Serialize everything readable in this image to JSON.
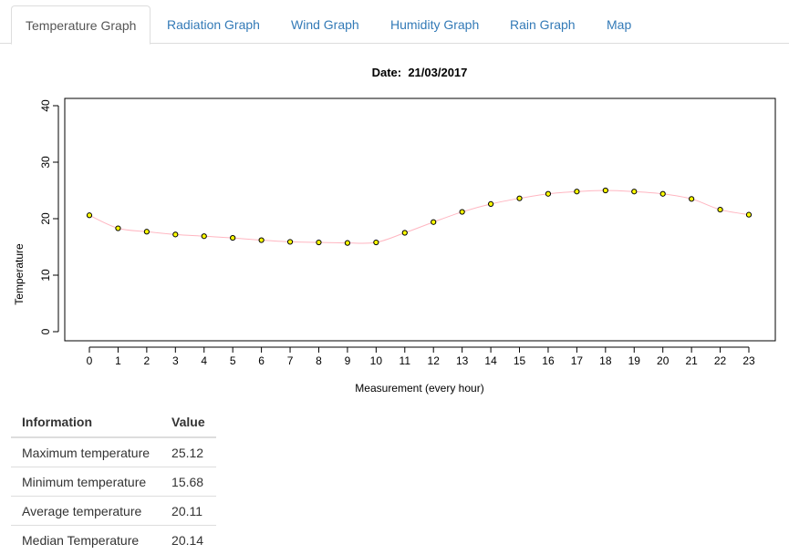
{
  "tabs": [
    {
      "label": "Temperature Graph",
      "active": true
    },
    {
      "label": "Radiation Graph",
      "active": false
    },
    {
      "label": "Wind Graph",
      "active": false
    },
    {
      "label": "Humidity Graph",
      "active": false
    },
    {
      "label": "Rain Graph",
      "active": false
    },
    {
      "label": "Map",
      "active": false
    }
  ],
  "chart_data": {
    "type": "line",
    "title": "Date:  21/03/2017",
    "xlabel": "Measurement (every hour)",
    "ylabel": "Temperature",
    "x": [
      0,
      1,
      2,
      3,
      4,
      5,
      6,
      7,
      8,
      9,
      10,
      11,
      12,
      13,
      14,
      15,
      16,
      17,
      18,
      19,
      20,
      21,
      22,
      23
    ],
    "series": [
      {
        "values": [
          20.6,
          18.3,
          17.7,
          17.2,
          16.9,
          16.6,
          16.2,
          15.9,
          15.8,
          15.7,
          15.8,
          17.5,
          19.4,
          21.2,
          22.6,
          23.6,
          24.4,
          24.8,
          25.0,
          24.8,
          24.4,
          23.5,
          21.6,
          20.7
        ],
        "line_color": "#ffb6c1",
        "marker_fill": "#ffff00",
        "marker_edge": "#000000"
      }
    ],
    "xlim": [
      0,
      23
    ],
    "ylim": [
      0,
      40
    ],
    "yticks": [
      0,
      10,
      20,
      30,
      40
    ],
    "grid": false
  },
  "info_table": {
    "headers": [
      "Information",
      "Value"
    ],
    "rows": [
      [
        "Maximum temperature",
        "25.12"
      ],
      [
        "Minimum temperature",
        "15.68"
      ],
      [
        "Average temperature",
        "20.11"
      ],
      [
        "Median Temperature",
        "20.14"
      ]
    ]
  }
}
